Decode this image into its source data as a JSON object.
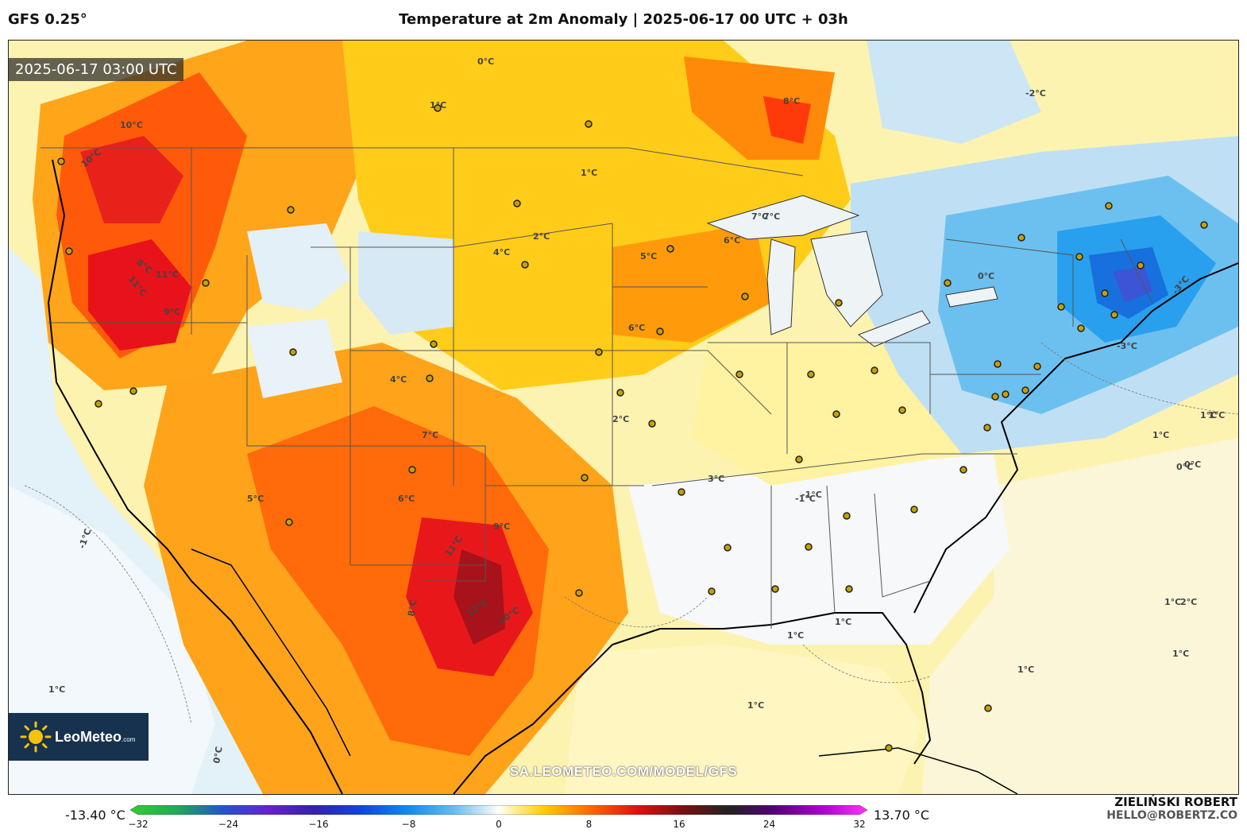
{
  "header": {
    "model": "GFS 0.25°",
    "title": "Temperature at 2m Anomaly | 2025-06-17 00 UTC + 03h"
  },
  "map": {
    "timestamp": "2025-06-17 03:00 UTC",
    "watermark": "SA.LEOMETEO.COM/MODEL/GFS",
    "logo": {
      "brand": "LeoMeteo",
      "suffix": ".com"
    },
    "contour_labels": [
      "10°C",
      "8°C",
      "11°C",
      "11°C",
      "9°C",
      "10°C",
      "7°C",
      "6°C",
      "5°C",
      "1°C",
      "2°C",
      "3°C",
      "4°C",
      "2°C",
      "1°C",
      "0°C",
      "8°C",
      "7°C",
      "6°C",
      "5°C",
      "4°C",
      "-1°C",
      "-2°C",
      "-3°C",
      "-3°C",
      "0°C",
      "1°C",
      "7°C",
      "9°C",
      "11°C",
      "12°C",
      "10°C",
      "8°C",
      "6°C",
      "1°C",
      "1°C",
      "0°C",
      "1°C",
      "1°C",
      "1°C",
      "1°C",
      "2°C",
      "0°C",
      "1°C",
      "1°C",
      "-1°C",
      "0°C",
      "1°C",
      "-1°C"
    ]
  },
  "colorbar": {
    "min_label": "-13.40 °C",
    "max_label": "13.70 °C",
    "ticks": [
      "−32",
      "−24",
      "−16",
      "−8",
      "0",
      "8",
      "16",
      "24",
      "32"
    ],
    "stops": [
      {
        "v": -32,
        "color": "#33cc33"
      },
      {
        "v": -28,
        "color": "#22aa55"
      },
      {
        "v": -24,
        "color": "#2255cc"
      },
      {
        "v": -20,
        "color": "#6622cc"
      },
      {
        "v": -16,
        "color": "#3322aa"
      },
      {
        "v": -12,
        "color": "#1144dd"
      },
      {
        "v": -8,
        "color": "#1188ee"
      },
      {
        "v": -4,
        "color": "#66bbee"
      },
      {
        "v": -1,
        "color": "#d8ecf6"
      },
      {
        "v": 0,
        "color": "#ffffff"
      },
      {
        "v": 1,
        "color": "#fff3b0"
      },
      {
        "v": 4,
        "color": "#ffcc00"
      },
      {
        "v": 8,
        "color": "#ff6600"
      },
      {
        "v": 12,
        "color": "#dd1111"
      },
      {
        "v": 16,
        "color": "#771111"
      },
      {
        "v": 20,
        "color": "#222222"
      },
      {
        "v": 24,
        "color": "#550077"
      },
      {
        "v": 28,
        "color": "#aa00cc"
      },
      {
        "v": 32,
        "color": "#ff33ff"
      }
    ]
  },
  "footer": {
    "author": "ZIELIŃSKI ROBERT",
    "email": "HELLO@ROBERTZ.CO"
  }
}
